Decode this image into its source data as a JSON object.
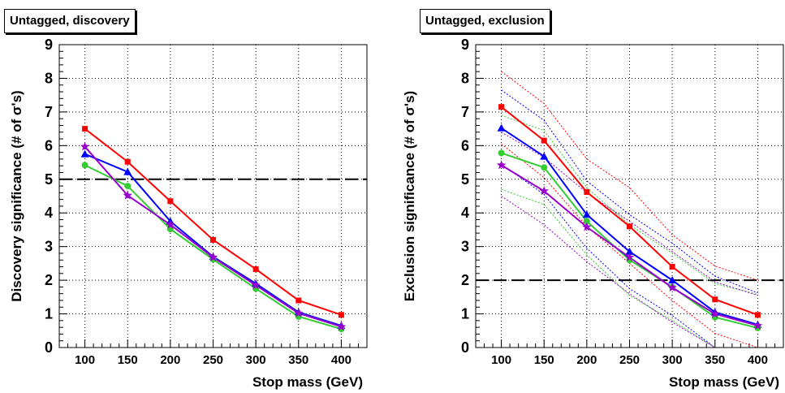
{
  "chart_data": [
    {
      "type": "line",
      "title": "Untagged, discovery",
      "xlabel": "Stop mass (GeV)",
      "ylabel": "Discovery significance  (# of σ's)",
      "xlim": [
        70,
        430
      ],
      "ylim": [
        0,
        9
      ],
      "x": [
        100,
        150,
        200,
        250,
        300,
        350,
        400
      ],
      "xticks": [
        "100",
        "150",
        "200",
        "250",
        "300",
        "350",
        "400"
      ],
      "yticks": [
        "0",
        "1",
        "2",
        "3",
        "4",
        "5",
        "6",
        "7",
        "8",
        "9"
      ],
      "grid": true,
      "reference_line": 5,
      "series": [
        {
          "color": "#ff0000",
          "marker": "square",
          "values": [
            6.5,
            5.52,
            4.35,
            3.2,
            2.33,
            1.4,
            0.97
          ]
        },
        {
          "color": "#0000ff",
          "marker": "triangle",
          "values": [
            5.75,
            5.22,
            3.75,
            2.7,
            1.9,
            1.05,
            0.65
          ]
        },
        {
          "color": "#33cc33",
          "marker": "circle",
          "values": [
            5.42,
            4.8,
            3.52,
            2.62,
            1.75,
            0.92,
            0.55
          ]
        },
        {
          "color": "#9900cc",
          "marker": "star",
          "values": [
            5.97,
            4.52,
            3.65,
            2.68,
            1.85,
            1.02,
            0.62
          ]
        }
      ]
    },
    {
      "type": "line",
      "title": "Untagged, exclusion",
      "xlabel": "Stop mass (GeV)",
      "ylabel": "Exclusion significance  (# of σ's)",
      "xlim": [
        70,
        430
      ],
      "ylim": [
        0,
        9
      ],
      "x": [
        100,
        150,
        200,
        250,
        300,
        350,
        400
      ],
      "xticks": [
        "100",
        "150",
        "200",
        "250",
        "300",
        "350",
        "400"
      ],
      "yticks": [
        "0",
        "1",
        "2",
        "3",
        "4",
        "5",
        "6",
        "7",
        "8",
        "9"
      ],
      "grid": true,
      "reference_line": 2,
      "series": [
        {
          "color": "#ff0000",
          "marker": "square",
          "values": [
            7.15,
            6.15,
            4.62,
            3.6,
            2.4,
            1.43,
            0.97
          ],
          "band_upper": [
            8.2,
            7.25,
            5.6,
            4.75,
            3.35,
            2.42,
            2.0
          ],
          "band_lower": [
            6.05,
            5.05,
            3.6,
            2.5,
            1.4,
            0.42,
            0.0
          ]
        },
        {
          "color": "#0000ff",
          "marker": "triangle",
          "values": [
            6.52,
            5.68,
            3.95,
            2.85,
            2.0,
            1.05,
            0.68
          ],
          "band_upper": [
            7.65,
            6.75,
            4.95,
            3.95,
            3.1,
            2.12,
            1.62
          ],
          "band_lower": [
            5.45,
            4.55,
            2.95,
            1.75,
            0.95,
            0.0,
            0.0
          ]
        },
        {
          "color": "#33cc33",
          "marker": "circle",
          "values": [
            5.78,
            5.35,
            3.75,
            2.6,
            1.8,
            0.9,
            0.58
          ],
          "band_upper": [
            6.9,
            6.45,
            4.75,
            3.65,
            2.8,
            1.9,
            1.58
          ],
          "band_lower": [
            4.7,
            4.25,
            2.75,
            1.55,
            0.8,
            0.0,
            0.0
          ]
        },
        {
          "color": "#9900cc",
          "marker": "star",
          "values": [
            5.42,
            4.65,
            3.58,
            2.68,
            1.78,
            1.0,
            0.65
          ],
          "band_upper": [
            6.4,
            5.65,
            4.6,
            3.75,
            2.85,
            1.95,
            1.55
          ],
          "band_lower": [
            4.5,
            3.65,
            2.55,
            1.6,
            0.75,
            0.0,
            0.0
          ]
        }
      ]
    }
  ]
}
